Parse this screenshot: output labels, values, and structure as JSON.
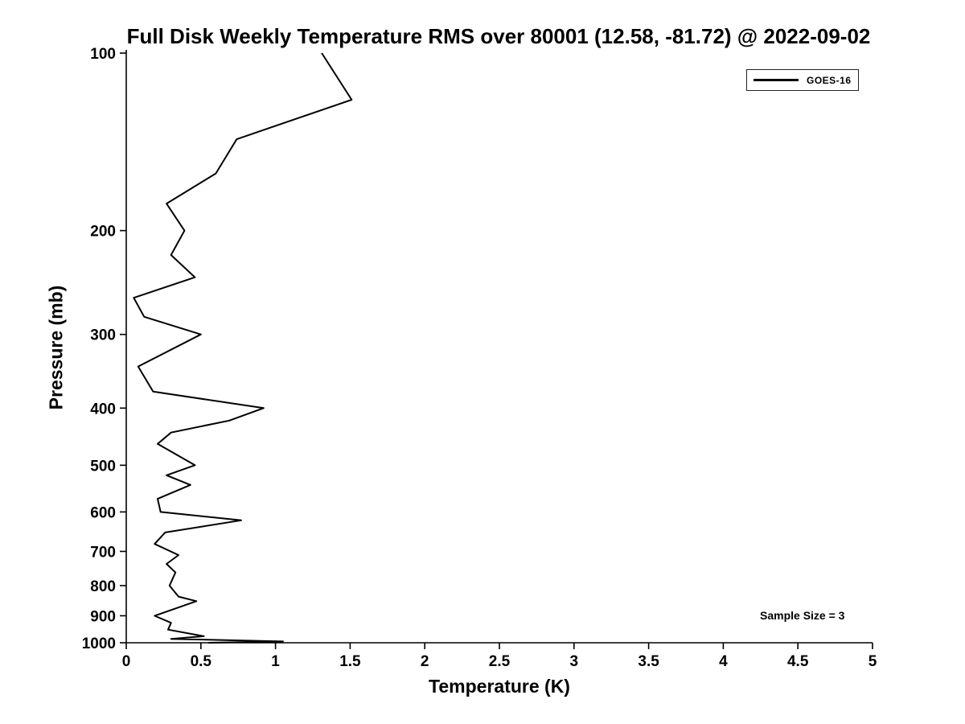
{
  "figure": {
    "title": "Full Disk Weekly Temperature RMS over 80001 (12.58, -81.72) @ 2022-09-02",
    "xlabel": "Temperature (K)",
    "ylabel": "Pressure (mb)",
    "legend": {
      "series_label": "GOES-16",
      "line_color": "#000000"
    },
    "annotation": "Sample Size = 3"
  },
  "chart_data": {
    "type": "line",
    "title": "Full Disk Weekly Temperature RMS over 80001 (12.58, -81.72) @ 2022-09-02",
    "xlabel": "Temperature (K)",
    "ylabel": "Pressure (mb)",
    "grid": false,
    "legend_position": "top-right",
    "sample_size": 3,
    "x_axis": {
      "min": 0,
      "max": 5,
      "ticks": [
        0,
        0.5,
        1,
        1.5,
        2,
        2.5,
        3,
        3.5,
        4,
        4.5,
        5
      ],
      "tick_labels": [
        "0",
        "0.5",
        "1",
        "1.5",
        "2",
        "2.5",
        "3",
        "3.5",
        "4",
        "4.5",
        "5"
      ]
    },
    "y_axis": {
      "min": 100,
      "max": 1000,
      "scale": "log",
      "inverted": true,
      "ticks": [
        100,
        200,
        300,
        400,
        500,
        600,
        700,
        800,
        900,
        1000
      ],
      "tick_labels": [
        "100",
        "200",
        "300",
        "400",
        "500",
        "600",
        "700",
        "800",
        "900",
        "1000"
      ]
    },
    "series": [
      {
        "name": "GOES-16",
        "color": "#000000",
        "line_width": 2,
        "points_format": [
          "pressure_mb",
          "rms_k"
        ],
        "points": [
          [
            100,
            1.31
          ],
          [
            120,
            1.51
          ],
          [
            140,
            0.74
          ],
          [
            160,
            0.6
          ],
          [
            180,
            0.27
          ],
          [
            200,
            0.39
          ],
          [
            220,
            0.3
          ],
          [
            240,
            0.46
          ],
          [
            260,
            0.05
          ],
          [
            280,
            0.12
          ],
          [
            300,
            0.5
          ],
          [
            340,
            0.08
          ],
          [
            375,
            0.18
          ],
          [
            400,
            0.92
          ],
          [
            420,
            0.69
          ],
          [
            440,
            0.3
          ],
          [
            460,
            0.21
          ],
          [
            500,
            0.46
          ],
          [
            520,
            0.27
          ],
          [
            540,
            0.43
          ],
          [
            570,
            0.21
          ],
          [
            600,
            0.23
          ],
          [
            620,
            0.77
          ],
          [
            650,
            0.26
          ],
          [
            680,
            0.19
          ],
          [
            710,
            0.35
          ],
          [
            735,
            0.27
          ],
          [
            760,
            0.33
          ],
          [
            800,
            0.29
          ],
          [
            835,
            0.35
          ],
          [
            850,
            0.47
          ],
          [
            900,
            0.19
          ],
          [
            925,
            0.3
          ],
          [
            950,
            0.28
          ],
          [
            975,
            0.52
          ],
          [
            985,
            0.3
          ],
          [
            995,
            1.05
          ],
          [
            1000,
            0.55
          ]
        ]
      }
    ]
  }
}
